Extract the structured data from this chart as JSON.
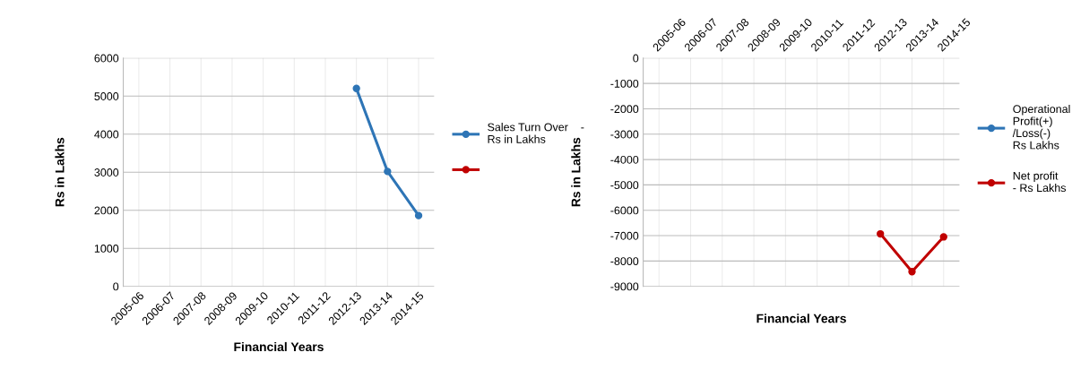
{
  "chart_data": [
    {
      "type": "line",
      "xlabel": "Financial Years",
      "ylabel": "Rs in Lakhs",
      "categories": [
        "2005-06",
        "2006-07",
        "2007-08",
        "2008-09",
        "2009-10",
        "2010-11",
        "2011-12",
        "2012-13",
        "2013-14",
        "2014-15"
      ],
      "series": [
        {
          "name": "Sales Turn Over    -\nRs in Lakhs",
          "color": "#2e75b6",
          "values": [
            null,
            null,
            null,
            null,
            null,
            null,
            null,
            5200,
            3020,
            1860
          ]
        },
        {
          "color": "#c00000",
          "values": [
            null,
            null,
            null,
            null,
            null,
            null,
            null,
            null,
            null,
            null
          ]
        }
      ],
      "ylim": [
        0,
        6000
      ],
      "yticks": [
        0,
        1000,
        2000,
        3000,
        4000,
        5000,
        6000
      ],
      "grid": true,
      "legend": "right",
      "marker": "circle",
      "line_style": "solid"
    },
    {
      "type": "line",
      "xlabel": "Financial Years",
      "ylabel": "Rs in Lakhs",
      "categories": [
        "2005-06",
        "2006-07",
        "2007-08",
        "2008-09",
        "2009-10",
        "2010-11",
        "2011-12",
        "2012-13",
        "2013-14",
        "2014-15"
      ],
      "series": [
        {
          "name": "Operational\nProfit(+)\n/Loss(-)\nRs Lakhs",
          "color": "#2e75b6",
          "values": [
            null,
            null,
            null,
            null,
            null,
            null,
            null,
            null,
            null,
            null
          ]
        },
        {
          "name": "Net profit\n- Rs Lakhs",
          "color": "#c00000",
          "values": [
            null,
            null,
            null,
            null,
            null,
            null,
            null,
            -6930,
            -8420,
            -7050
          ]
        }
      ],
      "ylim": [
        -9000,
        0
      ],
      "yticks": [
        0,
        -1000,
        -2000,
        -3000,
        -4000,
        -5000,
        -6000,
        -7000,
        -8000,
        -9000
      ],
      "grid": true,
      "legend": "right",
      "marker": "circle",
      "line_style": "solid"
    }
  ]
}
